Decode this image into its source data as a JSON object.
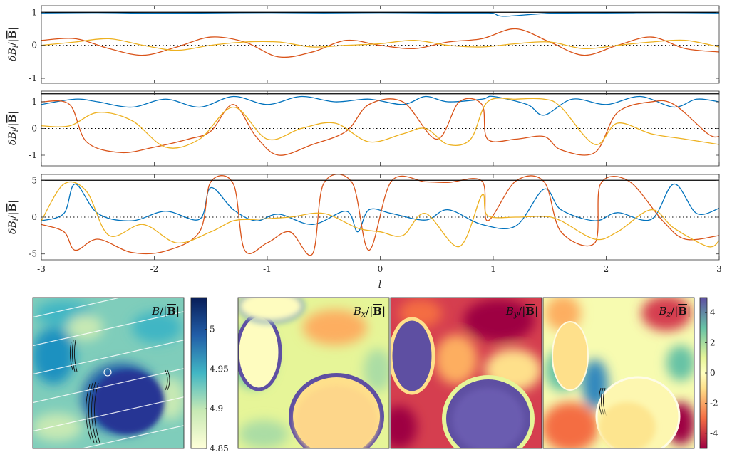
{
  "chart_data": [
    {
      "type": "line",
      "panel": "top",
      "ylabel": "δB_i/|B̄|",
      "ylabel_parts": {
        "main": "δB",
        "sub": "i",
        "tail": "/|",
        "bar": "B",
        "end": "|"
      },
      "ylim": [
        -1.15,
        1.2
      ],
      "xlim": [
        -3,
        3
      ],
      "yticks": [
        "-1",
        "0",
        "1"
      ],
      "ytick_values": [
        -1,
        0,
        1
      ],
      "zero_line": "dotted",
      "series": [
        {
          "color": "#0072BD",
          "x": [
            -3,
            -2.5,
            -2,
            -1.5,
            -1,
            -0.5,
            0,
            0.5,
            0.9,
            1.0,
            1.1,
            1.5,
            2,
            2.5,
            3
          ],
          "y": [
            0.98,
            0.99,
            0.97,
            0.98,
            0.99,
            0.98,
            0.99,
            0.98,
            0.98,
            0.97,
            0.88,
            0.97,
            0.98,
            0.99,
            0.98
          ]
        },
        {
          "color": "#D95319",
          "x": [
            -3,
            -2.7,
            -2.4,
            -2.1,
            -1.8,
            -1.5,
            -1.2,
            -0.9,
            -0.6,
            -0.3,
            0,
            0.3,
            0.6,
            0.9,
            1.2,
            1.5,
            1.8,
            2.1,
            2.4,
            2.7,
            3
          ],
          "y": [
            0.15,
            0.2,
            -0.1,
            -0.3,
            -0.05,
            0.25,
            0.1,
            -0.35,
            -0.2,
            0.15,
            0.0,
            -0.1,
            0.1,
            0.2,
            0.5,
            0.1,
            -0.3,
            0.0,
            0.25,
            -0.1,
            -0.2
          ]
        },
        {
          "color": "#EDB120",
          "x": [
            -3,
            -2.7,
            -2.4,
            -2.1,
            -1.8,
            -1.5,
            -1.2,
            -0.9,
            -0.6,
            -0.3,
            0,
            0.3,
            0.6,
            0.9,
            1.2,
            1.5,
            1.8,
            2.1,
            2.4,
            2.7,
            3
          ],
          "y": [
            0.0,
            0.1,
            0.2,
            0.0,
            -0.15,
            0.0,
            0.1,
            0.1,
            -0.05,
            0.0,
            0.05,
            0.15,
            0.0,
            -0.05,
            0.05,
            0.1,
            -0.1,
            0.0,
            0.1,
            0.15,
            -0.05
          ]
        },
        {
          "color": "#000000",
          "x": [
            -3,
            -2,
            -1,
            0,
            1,
            2,
            3
          ],
          "y": [
            1.0,
            1.0,
            1.0,
            1.0,
            1.0,
            1.0,
            1.0
          ]
        }
      ]
    },
    {
      "type": "line",
      "panel": "middle",
      "ylabel": "δB_i/|B̄|",
      "ylabel_parts": {
        "main": "δB",
        "sub": "i",
        "tail": "/|",
        "bar": "B",
        "end": "|"
      },
      "ylim": [
        -1.4,
        1.4
      ],
      "xlim": [
        -3,
        3
      ],
      "yticks": [
        "-1",
        "0",
        "1"
      ],
      "ytick_values": [
        -1,
        0,
        1
      ],
      "zero_line": "dotted",
      "series": [
        {
          "color": "#0072BD",
          "x": [
            -3,
            -2.7,
            -2.5,
            -2.2,
            -1.9,
            -1.6,
            -1.3,
            -1.0,
            -0.7,
            -0.4,
            -0.1,
            0.2,
            0.4,
            0.6,
            0.9,
            1.0,
            1.3,
            1.45,
            1.7,
            2.0,
            2.3,
            2.6,
            2.8,
            3
          ],
          "y": [
            0.9,
            1.1,
            1.0,
            0.8,
            1.1,
            0.8,
            1.2,
            0.9,
            1.2,
            1.0,
            1.1,
            0.9,
            1.2,
            1.0,
            1.1,
            1.2,
            0.9,
            0.5,
            1.1,
            0.9,
            1.2,
            0.8,
            1.1,
            1.0
          ]
        },
        {
          "color": "#D95319",
          "x": [
            -3,
            -2.75,
            -2.6,
            -2.3,
            -2.0,
            -1.7,
            -1.5,
            -1.3,
            -1.1,
            -0.9,
            -0.6,
            -0.3,
            -0.1,
            0.2,
            0.5,
            0.7,
            0.9,
            0.95,
            1.2,
            1.45,
            1.6,
            1.9,
            2.1,
            2.4,
            2.6,
            2.9,
            3
          ],
          "y": [
            1.0,
            0.9,
            -0.5,
            -0.9,
            -0.7,
            -0.4,
            -0.1,
            0.9,
            -0.3,
            -1.0,
            -0.6,
            -0.1,
            0.9,
            1.0,
            -0.4,
            1.0,
            0.9,
            -0.4,
            -0.4,
            -0.3,
            -0.8,
            -0.9,
            0.6,
            1.0,
            0.9,
            -0.2,
            -0.3
          ]
        },
        {
          "color": "#EDB120",
          "x": [
            -3,
            -2.75,
            -2.5,
            -2.2,
            -1.9,
            -1.6,
            -1.3,
            -1.0,
            -0.7,
            -0.4,
            -0.1,
            0.2,
            0.4,
            0.6,
            0.8,
            0.95,
            1.2,
            1.45,
            1.6,
            1.9,
            2.1,
            2.4,
            2.7,
            3
          ],
          "y": [
            0.1,
            0.1,
            0.6,
            0.3,
            -0.7,
            -0.4,
            0.8,
            -0.4,
            0.0,
            0.2,
            -0.5,
            -0.2,
            0.0,
            -0.6,
            -0.4,
            1.0,
            1.1,
            1.1,
            0.8,
            -0.6,
            0.2,
            -0.2,
            -0.4,
            -0.6
          ]
        },
        {
          "color": "#000000",
          "x": [
            -3,
            -2,
            -1,
            0,
            1,
            2,
            3
          ],
          "y": [
            1.3,
            1.3,
            1.3,
            1.3,
            1.3,
            1.3,
            1.3
          ]
        }
      ]
    },
    {
      "type": "line",
      "panel": "bottom",
      "ylabel": "δB_i/|B̄|",
      "ylabel_parts": {
        "main": "δB",
        "sub": "i",
        "tail": "/|",
        "bar": "B",
        "end": "|"
      },
      "ylim": [
        -5.8,
        5.8
      ],
      "xlim": [
        -3,
        3
      ],
      "yticks": [
        "-5",
        "0",
        "5"
      ],
      "ytick_values": [
        -5,
        0,
        5
      ],
      "xticks": [
        "-3",
        "-2",
        "-1",
        "0",
        "1",
        "2",
        "3"
      ],
      "xtick_values": [
        -3,
        -2,
        -1,
        0,
        1,
        2,
        3
      ],
      "xlabel": "l",
      "zero_line": "dotted",
      "series": [
        {
          "color": "#0072BD",
          "x": [
            -3,
            -2.8,
            -2.7,
            -2.5,
            -2.2,
            -1.9,
            -1.6,
            -1.5,
            -1.3,
            -1.1,
            -0.9,
            -0.6,
            -0.3,
            -0.2,
            -0.1,
            0.1,
            0.4,
            0.6,
            0.9,
            1.2,
            1.45,
            1.6,
            1.9,
            2.1,
            2.4,
            2.6,
            2.8,
            3
          ],
          "y": [
            -0.5,
            0.5,
            4.5,
            0.5,
            -0.5,
            0.8,
            -0.3,
            4.0,
            1.0,
            -0.5,
            0.4,
            -1.0,
            0.8,
            -2.0,
            1.0,
            0.5,
            -0.4,
            1.0,
            -1.0,
            -1.2,
            3.8,
            1.0,
            -0.5,
            0.6,
            -0.3,
            4.5,
            0.5,
            1.2
          ]
        },
        {
          "color": "#D95319",
          "x": [
            -3,
            -2.8,
            -2.7,
            -2.5,
            -2.2,
            -1.9,
            -1.6,
            -1.5,
            -1.3,
            -1.2,
            -1.0,
            -0.8,
            -0.6,
            -0.5,
            -0.25,
            -0.1,
            0.1,
            0.4,
            0.6,
            0.9,
            0.95,
            1.2,
            1.45,
            1.6,
            1.9,
            1.95,
            2.2,
            2.5,
            2.7,
            3
          ],
          "y": [
            -1.0,
            -2.0,
            -4.5,
            -3.0,
            -4.8,
            -4.6,
            -2.0,
            4.8,
            4.5,
            -4.5,
            -3.5,
            -2.0,
            -5.0,
            4.6,
            4.7,
            -4.5,
            4.9,
            4.8,
            4.7,
            4.9,
            -0.5,
            4.9,
            4.8,
            -2.0,
            -3.5,
            4.5,
            4.9,
            -0.5,
            -3.0,
            -2.5
          ]
        },
        {
          "color": "#EDB120",
          "x": [
            -3,
            -2.8,
            -2.6,
            -2.4,
            -2.1,
            -1.8,
            -1.5,
            -1.3,
            -1.1,
            -0.8,
            -0.5,
            -0.2,
            0.0,
            0.2,
            0.4,
            0.7,
            0.9,
            0.95,
            1.2,
            1.45,
            1.6,
            1.9,
            2.1,
            2.4,
            2.6,
            2.9,
            3
          ],
          "y": [
            -0.5,
            4.5,
            3.5,
            -2.5,
            -1.0,
            -3.5,
            -2.0,
            -0.5,
            -0.3,
            0.0,
            0.5,
            -1.5,
            -2.0,
            -2.5,
            0.5,
            -4.0,
            3.0,
            0.2,
            0.0,
            0.1,
            -0.5,
            -3.0,
            -2.0,
            1.0,
            -1.5,
            -4.0,
            -3.2
          ]
        },
        {
          "color": "#000000",
          "x": [
            -3,
            -2,
            -1,
            0,
            1,
            2,
            3
          ],
          "y": [
            5.0,
            5.0,
            5.0,
            5.0,
            5.0,
            5.0,
            5.0
          ]
        }
      ]
    },
    {
      "type": "heatmap",
      "panel": "image-1",
      "title": "B/|B̄|",
      "title_parts": {
        "main": "B",
        "tail": "/|",
        "bar": "B",
        "end": "|"
      },
      "colormap": "YlGnBu",
      "colorbar": {
        "ticks": [
          "5",
          "4.95",
          "4.9",
          "4.85"
        ],
        "values": [
          5.0,
          4.95,
          4.9,
          4.85
        ],
        "range": [
          4.85,
          5.04
        ]
      }
    },
    {
      "type": "heatmap",
      "panel": "image-2",
      "title": "B_x/|B̄|",
      "title_parts": {
        "main": "B",
        "sub": "x",
        "tail": "/|",
        "bar": "B",
        "end": "|"
      },
      "colormap": "Spectral"
    },
    {
      "type": "heatmap",
      "panel": "image-3",
      "title": "B_y/|B̄|",
      "title_parts": {
        "main": "B",
        "sub": "y",
        "tail": "/|",
        "bar": "B",
        "end": "|"
      },
      "colormap": "Spectral"
    },
    {
      "type": "heatmap",
      "panel": "image-4",
      "title": "B_z/|B̄|",
      "title_parts": {
        "main": "B",
        "sub": "z",
        "tail": "/|",
        "bar": "B",
        "end": "|"
      },
      "colormap": "Spectral",
      "colorbar": {
        "ticks": [
          "4",
          "2",
          "0",
          "-2",
          "-4"
        ],
        "values": [
          4,
          2,
          0,
          -2,
          -4
        ],
        "range": [
          -5,
          5
        ]
      }
    }
  ]
}
